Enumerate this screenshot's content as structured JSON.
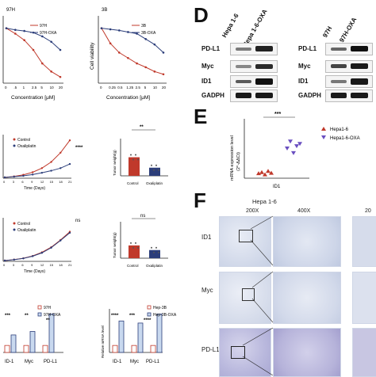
{
  "panel_letters": {
    "D": "D",
    "E": "E",
    "F": "F"
  },
  "viability": {
    "left": {
      "title": "97H",
      "ylabel": "",
      "xlabel": "Concentration [μM]",
      "legend": [
        "97H",
        "97H-OXA"
      ]
    },
    "right": {
      "title": "3B",
      "ylabel": "Cell viability",
      "xlabel": "Concentration [μM]",
      "legend": [
        "3B",
        "3B-OXA"
      ]
    },
    "x_ticks_left": [
      "0",
      ".5",
      "1",
      "2.5",
      "5",
      "10",
      "20"
    ],
    "x_ticks_right": [
      "0",
      "0.25",
      "0.5",
      "1.25",
      "2.5",
      "5",
      "10",
      "20"
    ]
  },
  "growth": {
    "legend": [
      "Control",
      "Oxaliplatin"
    ],
    "xlabel": "Time (Days)",
    "sig_top": "****",
    "sig_bottom": "ns",
    "x_ticks": [
      "0",
      "3",
      "6",
      "9",
      "12",
      "15",
      "18",
      "21"
    ]
  },
  "tumor_weight": {
    "ylabel": "Tumor weight(g)",
    "categories": [
      "Control",
      "Oxaliplatin"
    ],
    "sig_top": "**",
    "sig_bottom": "ns"
  },
  "mrna_bars": {
    "left": {
      "legend": [
        "97H",
        "97H-OXA"
      ],
      "categories": [
        "ID-1",
        "Myc",
        "PD-L1"
      ],
      "sig": [
        "***",
        "**",
        "**"
      ]
    },
    "right": {
      "ylabel": "Relative mRNA level",
      "legend": [
        "Hep-3B",
        "Hep-3B-OXA"
      ],
      "categories": [
        "ID-1",
        "Myc",
        "PD-L1"
      ],
      "sig": [
        "****",
        "***",
        "****"
      ]
    }
  },
  "western": {
    "left_cols": [
      "Hepa 1-6",
      "Hepa 1-6-OXA"
    ],
    "right_cols": [
      "97H",
      "97H-OXA"
    ],
    "rows": [
      "PD-L1",
      "Myc",
      "ID1",
      "GADPH"
    ]
  },
  "panel_e": {
    "ylabel": "mRNA expression level",
    "ylabel2": "(2^-ΔΔCt)",
    "xlabel": "ID1",
    "sig": "***",
    "legend": [
      "Hepa1-6",
      "Hepa1-6-OXA"
    ]
  },
  "panel_f": {
    "group": "Hepa 1-6",
    "mags": [
      "200X",
      "400X",
      "20"
    ],
    "rows": [
      "ID1",
      "Myc",
      "PD-L1"
    ]
  },
  "chart_data": [
    {
      "type": "line",
      "title": "97H",
      "xlabel": "Concentration [μM]",
      "ylabel": "",
      "categories": [
        "0",
        ".5",
        "1",
        "2.5",
        "5",
        "10",
        "20"
      ],
      "series": [
        {
          "name": "97H",
          "values": [
            1.0,
            0.9,
            0.78,
            0.6,
            0.35,
            0.2,
            0.1
          ]
        },
        {
          "name": "97H-OXA",
          "values": [
            1.0,
            0.97,
            0.95,
            0.92,
            0.85,
            0.75,
            0.6
          ]
        }
      ],
      "ylim": [
        0,
        1.2
      ],
      "legend": "top-right"
    },
    {
      "type": "line",
      "title": "3B",
      "xlabel": "Concentration [μM]",
      "ylabel": "Cell viability",
      "categories": [
        "0",
        "0.25",
        "0.5",
        "1.25",
        "2.5",
        "5",
        "10",
        "20"
      ],
      "series": [
        {
          "name": "3B",
          "values": [
            1.0,
            0.72,
            0.55,
            0.45,
            0.35,
            0.28,
            0.2,
            0.15
          ]
        },
        {
          "name": "3B-OXA",
          "values": [
            1.0,
            0.98,
            0.96,
            0.93,
            0.9,
            0.8,
            0.7,
            0.55
          ]
        }
      ],
      "ylim": [
        0,
        1.2
      ],
      "legend": "top-right"
    },
    {
      "type": "line",
      "title": "",
      "xlabel": "Time (Days)",
      "ylabel": "",
      "x": [
        0,
        3,
        6,
        9,
        12,
        15,
        18,
        21
      ],
      "series": [
        {
          "name": "Control",
          "values": [
            0,
            20,
            50,
            100,
            180,
            300,
            480,
            720
          ]
        },
        {
          "name": "Oxaliplatin",
          "values": [
            0,
            15,
            30,
            55,
            90,
            130,
            180,
            260
          ]
        }
      ],
      "ylim": [
        0,
        800
      ],
      "legend": "top-left"
    },
    {
      "type": "bar",
      "title": "",
      "ylabel": "Tumor weight(g)",
      "categories": [
        "Control",
        "Oxaliplatin"
      ],
      "values": [
        0.8,
        0.35
      ],
      "ylim": [
        0,
        1.5
      ]
    },
    {
      "type": "line",
      "title": "",
      "xlabel": "Time (Days)",
      "ylabel": "",
      "x": [
        0,
        3,
        6,
        9,
        12,
        15,
        18,
        21
      ],
      "series": [
        {
          "name": "Control",
          "values": [
            0,
            20,
            45,
            90,
            160,
            260,
            400,
            560
          ]
        },
        {
          "name": "Oxaliplatin",
          "values": [
            0,
            18,
            42,
            85,
            150,
            250,
            390,
            540
          ]
        }
      ],
      "ylim": [
        0,
        800
      ],
      "legend": "top-left"
    },
    {
      "type": "bar",
      "title": "",
      "ylabel": "Tumor weight(g)",
      "categories": [
        "Control",
        "Oxaliplatin"
      ],
      "values": [
        0.55,
        0.35
      ],
      "ylim": [
        0,
        1.5
      ]
    },
    {
      "type": "bar",
      "title": "",
      "ylabel": "",
      "categories": [
        "ID-1",
        "Myc",
        "PD-L1"
      ],
      "series": [
        {
          "name": "97H",
          "values": [
            1,
            1,
            1
          ]
        },
        {
          "name": "97H-OXA",
          "values": [
            2.5,
            3.0,
            5.5
          ]
        }
      ],
      "ylim": [
        0,
        6
      ]
    },
    {
      "type": "bar",
      "title": "",
      "ylabel": "Relative mRNA level",
      "categories": [
        "ID-1",
        "Myc",
        "PD-L1"
      ],
      "series": [
        {
          "name": "Hep-3B",
          "values": [
            1,
            1,
            1
          ]
        },
        {
          "name": "Hep-3B-OXA",
          "values": [
            4.5,
            4.2,
            5.5
          ]
        }
      ],
      "ylim": [
        0,
        6
      ]
    },
    {
      "type": "scatter",
      "title": "",
      "xlabel": "ID1",
      "ylabel": "mRNA expression level",
      "series": [
        {
          "name": "Hepa1-6",
          "values": [
            0.2,
            0.25,
            0.15,
            0.3,
            0.22
          ]
        },
        {
          "name": "Hepa1-6-OXA",
          "values": [
            1.3,
            1.6,
            1.1,
            1.4,
            1.5
          ]
        }
      ],
      "ylim": [
        0,
        2.5
      ]
    }
  ]
}
